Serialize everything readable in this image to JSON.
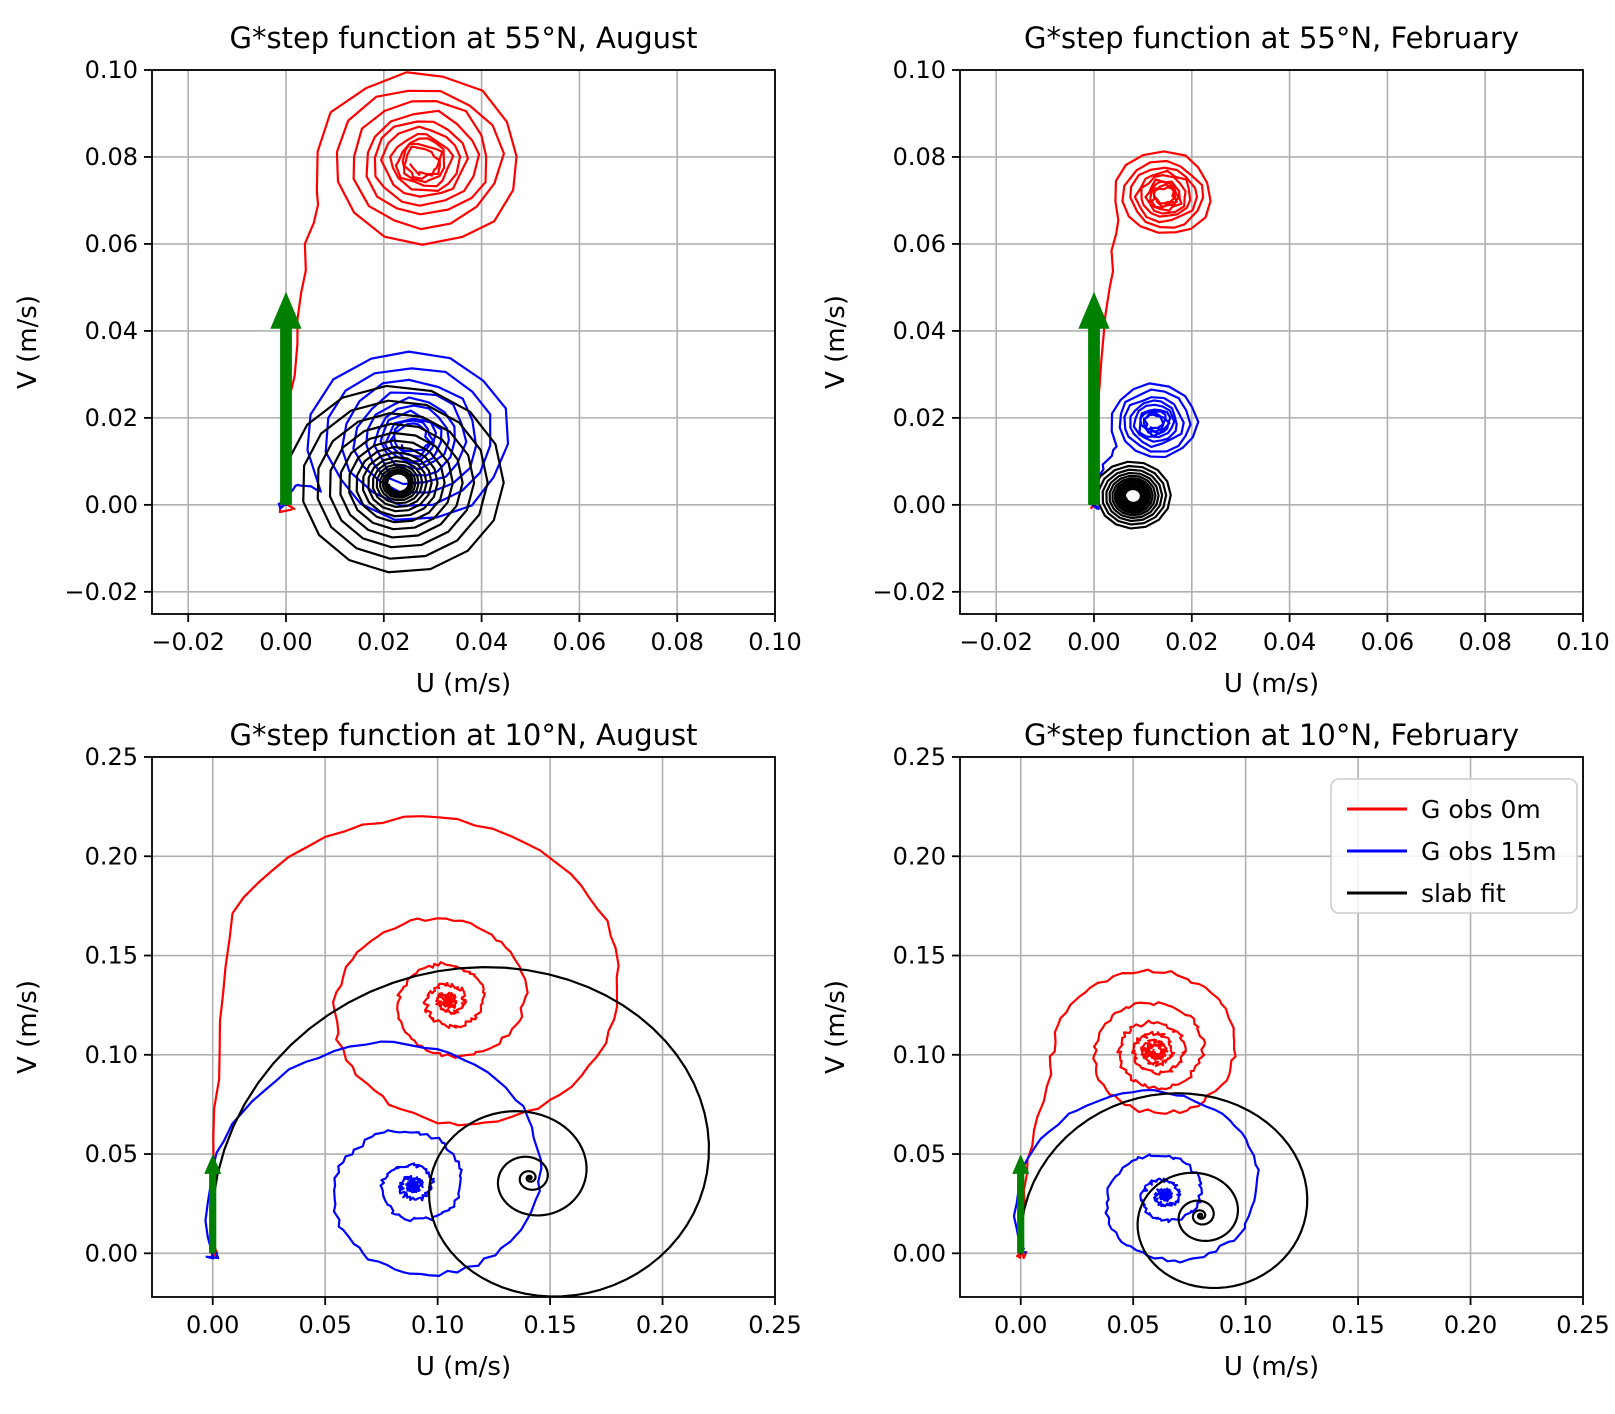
{
  "figure": {
    "background": "#ffffff",
    "description": "Four-panel hodograph figure of slab-model inertial spirals"
  },
  "palette": {
    "red": "#ff0000",
    "blue": "#0000ff",
    "black": "#000000",
    "green": "#008000",
    "grid": "#b0b0b0",
    "spine": "#000000"
  },
  "legend": {
    "location": "upper right",
    "entries": [
      {
        "label": "G obs 0m",
        "color_key": "red"
      },
      {
        "label": "G obs 15m",
        "color_key": "blue"
      },
      {
        "label": "slab fit",
        "color_key": "black"
      }
    ]
  },
  "chart_data": [
    {
      "type": "line",
      "title": "G*step function at 55°N, August",
      "xlabel": "U (m/s)",
      "ylabel": "V (m/s)",
      "xlim": [
        -0.0274,
        0.1
      ],
      "ylim": [
        -0.0251,
        0.1
      ],
      "xticks": {
        "values": [
          -0.02,
          0.0,
          0.02,
          0.04,
          0.06,
          0.08,
          0.1
        ],
        "labels": [
          "−0.02",
          "0.00",
          "0.02",
          "0.04",
          "0.06",
          "0.08",
          "0.10"
        ]
      },
      "yticks": {
        "values": [
          -0.02,
          0.0,
          0.02,
          0.04,
          0.06,
          0.08,
          0.1
        ],
        "labels": [
          "−0.02",
          "0.00",
          "0.02",
          "0.04",
          "0.06",
          "0.08",
          "0.10"
        ]
      },
      "grid": true,
      "show_legend": false,
      "arrow": {
        "name": "wind-stress-arrow",
        "color_key": "green",
        "from": [
          0,
          0
        ],
        "to": [
          0,
          0.049
        ],
        "shaft_halfwidth": 0.0012,
        "head_halfwidth": 0.0032,
        "head_length": 0.0085
      },
      "series": [
        {
          "name": "G obs 0m",
          "color_key": "red",
          "start": [
            0,
            0
          ],
          "pre_points": 4,
          "bezier_ctrl": [
            0.001,
            0.05
          ],
          "center": [
            0.028,
            0.079
          ],
          "r0": 0.022,
          "theta0_deg": 197,
          "decay_per_turn": 0.2,
          "turns": 10,
          "samples_per_turn": 15,
          "noise": 0.0007,
          "seed": 11
        },
        {
          "name": "G obs 15m",
          "color_key": "blue",
          "start": [
            0,
            0
          ],
          "pre_points": 5,
          "bezier_ctrl": [
            0.0,
            0.006
          ],
          "center": [
            0.026,
            0.015
          ],
          "r0": 0.022,
          "theta0_deg": 212,
          "decay_per_turn": 0.2,
          "turns": 10,
          "samples_per_turn": 15,
          "noise": 0.0006,
          "seed": 22
        },
        {
          "name": "slab fit",
          "color_key": "black",
          "start": [
            0,
            0
          ],
          "pre_points": 0,
          "center": [
            0.023,
            0.005
          ],
          "r0": 0.0235,
          "theta0_deg": 192.3,
          "decay_per_turn": 0.165,
          "turns": 15,
          "samples_per_turn": 15,
          "noise": 0,
          "seed": 3
        }
      ]
    },
    {
      "type": "line",
      "title": "G*step function at 55°N, February",
      "xlabel": "U (m/s)",
      "ylabel": "V (m/s)",
      "xlim": [
        -0.0274,
        0.1
      ],
      "ylim": [
        -0.0251,
        0.1
      ],
      "xticks": {
        "values": [
          -0.02,
          0.0,
          0.02,
          0.04,
          0.06,
          0.08,
          0.1
        ],
        "labels": [
          "−0.02",
          "0.00",
          "0.02",
          "0.04",
          "0.06",
          "0.08",
          "0.10"
        ]
      },
      "yticks": {
        "values": [
          -0.02,
          0.0,
          0.02,
          0.04,
          0.06,
          0.08,
          0.1
        ],
        "labels": [
          "−0.02",
          "0.00",
          "0.02",
          "0.04",
          "0.06",
          "0.08",
          "0.10"
        ]
      },
      "grid": true,
      "show_legend": false,
      "arrow": {
        "name": "wind-stress-arrow",
        "color_key": "green",
        "from": [
          0,
          0
        ],
        "to": [
          0,
          0.049
        ],
        "shaft_halfwidth": 0.0012,
        "head_halfwidth": 0.0032,
        "head_length": 0.0085
      },
      "series": [
        {
          "name": "G obs 0m",
          "color_key": "red",
          "start": [
            0,
            0
          ],
          "pre_points": 4,
          "bezier_ctrl": [
            0.001,
            0.045
          ],
          "center": [
            0.0145,
            0.071
          ],
          "r0": 0.0105,
          "theta0_deg": 210,
          "decay_per_turn": 0.2,
          "turns": 9,
          "samples_per_turn": 15,
          "noise": 0.0005,
          "seed": 44
        },
        {
          "name": "G obs 15m",
          "color_key": "blue",
          "start": [
            0,
            0
          ],
          "pre_points": 5,
          "bezier_ctrl": [
            0.0,
            0.008
          ],
          "center": [
            0.0125,
            0.019
          ],
          "r0": 0.0095,
          "theta0_deg": 215,
          "decay_per_turn": 0.2,
          "turns": 9,
          "samples_per_turn": 15,
          "noise": 0.0004,
          "seed": 55
        },
        {
          "name": "slab fit",
          "color_key": "black",
          "start": [
            0,
            0
          ],
          "pre_points": 0,
          "center": [
            0.008,
            0.002
          ],
          "r0": 0.00825,
          "theta0_deg": 194,
          "decay_per_turn": 0.13,
          "turns": 13,
          "samples_per_turn": 15,
          "noise": 0,
          "seed": 6
        }
      ]
    },
    {
      "type": "line",
      "title": "G*step function at 10°N, August",
      "xlabel": "U (m/s)",
      "ylabel": "V (m/s)",
      "xlim": [
        -0.027,
        0.25
      ],
      "ylim": [
        -0.022,
        0.25
      ],
      "xticks": {
        "values": [
          0.0,
          0.05,
          0.1,
          0.15,
          0.2,
          0.25
        ],
        "labels": [
          "0.00",
          "0.05",
          "0.10",
          "0.15",
          "0.20",
          "0.25"
        ]
      },
      "yticks": {
        "values": [
          0.0,
          0.05,
          0.1,
          0.15,
          0.2,
          0.25
        ],
        "labels": [
          "0.00",
          "0.05",
          "0.10",
          "0.15",
          "0.20",
          "0.25"
        ]
      },
      "grid": true,
      "show_legend": false,
      "arrow": {
        "name": "wind-stress-arrow",
        "color_key": "green",
        "from": [
          0,
          0
        ],
        "to": [
          0,
          0.05
        ],
        "shaft_halfwidth": 0.0016,
        "head_halfwidth": 0.0038,
        "head_length": 0.01
      },
      "series": [
        {
          "name": "G obs 0m",
          "color_key": "red",
          "start": [
            0,
            0
          ],
          "pre_points": 6,
          "bezier_ctrl": [
            0.0,
            0.09
          ],
          "center": [
            0.105,
            0.127
          ],
          "r0": 0.106,
          "theta0_deg": 155,
          "decay_per_turn": 0.8,
          "turns": 6,
          "samples_per_turn": 69,
          "noise": 0.0011,
          "seed": 77
        },
        {
          "name": "G obs 15m",
          "color_key": "blue",
          "start": [
            0,
            0
          ],
          "pre_points": 6,
          "center": [
            0.089,
            0.034
          ],
          "r0": 0.0953,
          "theta0_deg": 200.9,
          "decay_per_turn": 0.95,
          "turns": 6,
          "samples_per_turn": 69,
          "noise": 0.0011,
          "seed": 88
        },
        {
          "name": "slab fit",
          "color_key": "black",
          "start": [
            0,
            0
          ],
          "pre_points": 0,
          "center": [
            0.141,
            0.038
          ],
          "r0": 0.146,
          "theta0_deg": 194.9,
          "decay_per_turn": 1.15,
          "turns": 5.5,
          "samples_per_turn": 69,
          "noise": 0,
          "seed": 9
        }
      ]
    },
    {
      "type": "line",
      "title": "G*step function at 10°N, February",
      "xlabel": "U (m/s)",
      "ylabel": "V (m/s)",
      "xlim": [
        -0.027,
        0.25
      ],
      "ylim": [
        -0.022,
        0.25
      ],
      "xticks": {
        "values": [
          0.0,
          0.05,
          0.1,
          0.15,
          0.2,
          0.25
        ],
        "labels": [
          "0.00",
          "0.05",
          "0.10",
          "0.15",
          "0.20",
          "0.25"
        ]
      },
      "yticks": {
        "values": [
          0.0,
          0.05,
          0.1,
          0.15,
          0.2,
          0.25
        ],
        "labels": [
          "0.00",
          "0.05",
          "0.10",
          "0.15",
          "0.20",
          "0.25"
        ]
      },
      "grid": true,
      "show_legend": true,
      "arrow": {
        "name": "wind-stress-arrow",
        "color_key": "green",
        "from": [
          0,
          0
        ],
        "to": [
          0,
          0.05
        ],
        "shaft_halfwidth": 0.0016,
        "head_halfwidth": 0.0038,
        "head_length": 0.01
      },
      "series": [
        {
          "name": "G obs 0m",
          "color_key": "red",
          "start": [
            0,
            0
          ],
          "pre_points": 6,
          "bezier_ctrl": [
            0.0,
            0.05
          ],
          "center": [
            0.06,
            0.102
          ],
          "r0": 0.047,
          "theta0_deg": 195,
          "decay_per_turn": 0.52,
          "turns": 6,
          "samples_per_turn": 69,
          "noise": 0.0011,
          "seed": 101
        },
        {
          "name": "G obs 15m",
          "color_key": "blue",
          "start": [
            0,
            0
          ],
          "pre_points": 6,
          "center": [
            0.064,
            0.029
          ],
          "r0": 0.0703,
          "theta0_deg": 204.4,
          "decay_per_turn": 0.95,
          "turns": 6,
          "samples_per_turn": 69,
          "noise": 0.001,
          "seed": 112
        },
        {
          "name": "slab fit",
          "color_key": "black",
          "start": [
            0,
            0
          ],
          "pre_points": 0,
          "center": [
            0.08,
            0.019
          ],
          "r0": 0.0822,
          "theta0_deg": 193.4,
          "decay_per_turn": 1.05,
          "turns": 5,
          "samples_per_turn": 69,
          "noise": 0,
          "seed": 13
        }
      ]
    }
  ]
}
